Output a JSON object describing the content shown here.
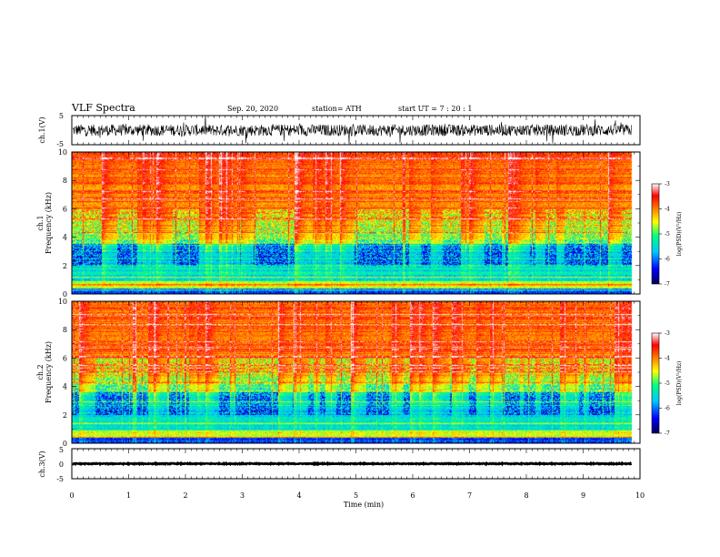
{
  "header": {
    "title": "VLF Spectra",
    "date": "Sep. 20, 2020",
    "station": "station= ATH",
    "start": "start  UT =   7 : 20 : 1"
  },
  "chart_data": [
    {
      "type": "line",
      "name": "ch1-waveform",
      "ylabel": "ch.1(V)",
      "ylim": [
        -5,
        5
      ],
      "yticks": [
        "5",
        "-5"
      ],
      "xlim": [
        0,
        10
      ],
      "data_extent_min": 9.85,
      "baseline": 0,
      "amplitude": 2.5
    },
    {
      "type": "heatmap",
      "name": "ch1-spectrogram",
      "ylabel": "ch.1\nFrequency (kHz)",
      "ylim": [
        0,
        10
      ],
      "yticks": [
        "0",
        "2",
        "4",
        "6",
        "8",
        "10"
      ],
      "xlim": [
        0,
        10
      ],
      "colorbar": {
        "label": "log(PSD)(V²/Hz)",
        "range": [
          -7,
          -3
        ],
        "ticks": [
          "-3",
          "-4",
          "-5",
          "-6",
          "-7"
        ]
      }
    },
    {
      "type": "heatmap",
      "name": "ch2-spectrogram",
      "ylabel": "ch.2\nFrequency (kHz)",
      "ylim": [
        0,
        10
      ],
      "yticks": [
        "0",
        "2",
        "4",
        "6",
        "8",
        "10"
      ],
      "xlim": [
        0,
        10
      ],
      "colorbar": {
        "label": "log(PSD)(V²/Hz)",
        "range": [
          -7,
          -3
        ],
        "ticks": [
          "-3",
          "-4",
          "-5",
          "-6",
          "-7"
        ]
      }
    },
    {
      "type": "line",
      "name": "ch3-waveform",
      "ylabel": "ch.3(V)",
      "ylim": [
        -5,
        5
      ],
      "yticks": [
        "5",
        "0",
        "-5"
      ],
      "xlim": [
        0,
        10
      ],
      "data_extent_min": 9.85,
      "baseline": 0,
      "amplitude": 0.3
    }
  ],
  "xaxis": {
    "label": "Time (min)",
    "ticks": [
      "0",
      "1",
      "2",
      "3",
      "4",
      "5",
      "6",
      "7",
      "8",
      "9",
      "10"
    ]
  },
  "colors": {
    "colormap": [
      "#00005a",
      "#0000ff",
      "#00c8ff",
      "#00ff80",
      "#ffff00",
      "#ff8000",
      "#ff0000",
      "#ffffff"
    ]
  }
}
